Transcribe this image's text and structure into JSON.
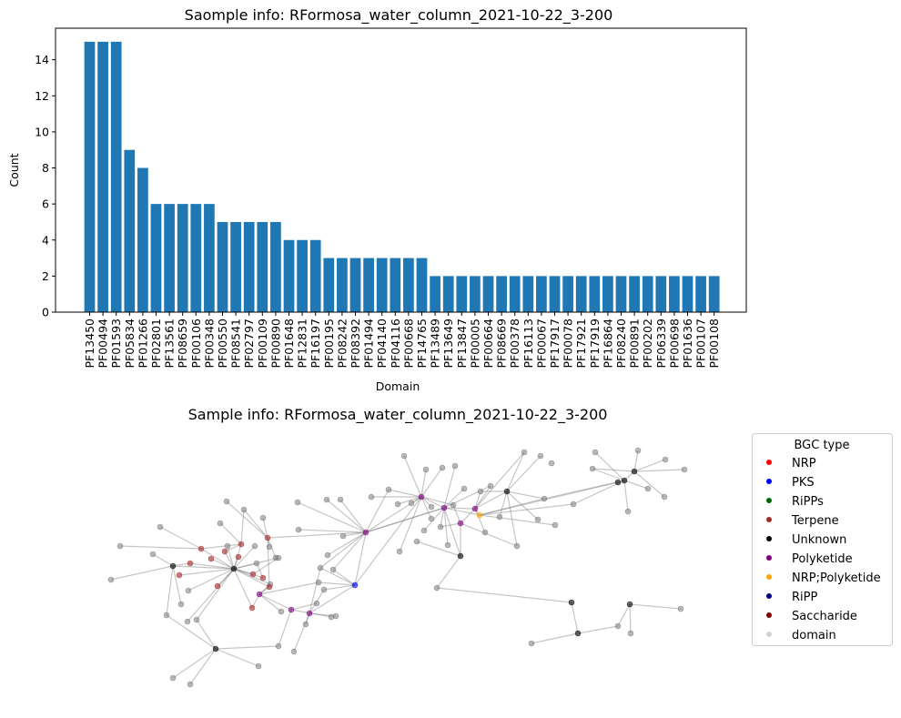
{
  "chart_data": [
    {
      "type": "bar",
      "title": "Saomple info: RFormosa_water_column_2021-10-22_3-200",
      "xlabel": "Domain",
      "ylabel": "Count",
      "ylim": [
        0,
        15.75
      ],
      "yticks": [
        0,
        2,
        4,
        6,
        8,
        10,
        12,
        14
      ],
      "grid": false,
      "bar_color": "#1f77b4",
      "categories": [
        "PF13450",
        "PF00494",
        "PF01593",
        "PF05834",
        "PF01266",
        "PF02801",
        "PF13561",
        "PF08659",
        "PF00106",
        "PF00348",
        "PF00550",
        "PF08541",
        "PF02797",
        "PF00109",
        "PF00890",
        "PF01648",
        "PF12831",
        "PF16197",
        "PF00195",
        "PF08242",
        "PF08392",
        "PF01494",
        "PF04140",
        "PF04116",
        "PF00668",
        "PF14765",
        "PF13489",
        "PF13649",
        "PF13847",
        "PF00005",
        "PF00664",
        "PF08669",
        "PF00378",
        "PF16113",
        "PF00067",
        "PF17917",
        "PF00078",
        "PF17921",
        "PF17919",
        "PF16864",
        "PF08240",
        "PF00891",
        "PF00202",
        "PF06339",
        "PF00698",
        "PF01636",
        "PF00107",
        "PF00108"
      ],
      "values": [
        15,
        15,
        15,
        9,
        8,
        6,
        6,
        6,
        6,
        6,
        5,
        5,
        5,
        5,
        5,
        4,
        4,
        4,
        3,
        3,
        3,
        3,
        3,
        3,
        3,
        3,
        2,
        2,
        2,
        2,
        2,
        2,
        2,
        2,
        2,
        2,
        2,
        2,
        2,
        2,
        2,
        2,
        2,
        2,
        2,
        2,
        2,
        2
      ]
    },
    {
      "type": "network",
      "title": "Sample info: RFormosa_water_column_2021-10-22_3-200",
      "legend": {
        "title": "BGC type",
        "placement": "outside-right",
        "entries": [
          {
            "label": "NRP",
            "color": "#ff0000"
          },
          {
            "label": "PKS",
            "color": "#0000ff"
          },
          {
            "label": "RiPPs",
            "color": "#006400"
          },
          {
            "label": "Terpene",
            "color": "#a52a2a"
          },
          {
            "label": "Unknown",
            "color": "#000000"
          },
          {
            "label": "Polyketide",
            "color": "#800080"
          },
          {
            "label": "NRP;Polyketide",
            "color": "#ffa500"
          },
          {
            "label": "RiPP",
            "color": "#000080"
          },
          {
            "label": "Saccharide",
            "color": "#800000"
          },
          {
            "label": "domain",
            "color": "#d3d3d3"
          }
        ]
      },
      "node_colors": {
        "domain": "#808080",
        "Terpene": "#a52a2a",
        "Polyketide": "#800080",
        "Unknown": "#000000",
        "PKS": "#0000ff",
        "NRP;Polyketide": "#ffa500"
      }
    }
  ]
}
